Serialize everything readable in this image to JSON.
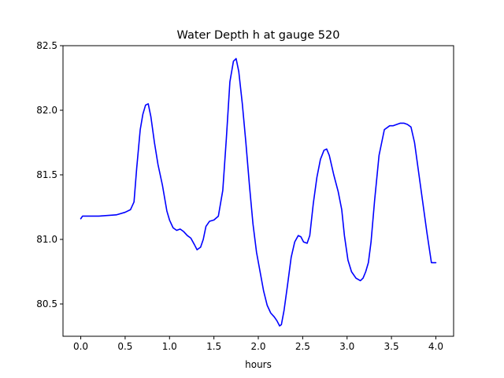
{
  "chart_data": {
    "type": "line",
    "title": "Water Depth h at gauge 520",
    "xlabel": "hours",
    "ylabel": "",
    "xlim": [
      -0.2,
      4.2
    ],
    "ylim": [
      80.25,
      82.5
    ],
    "xticks": [
      0.0,
      0.5,
      1.0,
      1.5,
      2.0,
      2.5,
      3.0,
      3.5,
      4.0
    ],
    "xtick_labels": [
      "0.0",
      "0.5",
      "1.0",
      "1.5",
      "2.0",
      "2.5",
      "3.0",
      "3.5",
      "4.0"
    ],
    "yticks": [
      80.5,
      81.0,
      81.5,
      82.0,
      82.5
    ],
    "ytick_labels": [
      "80.5",
      "81.0",
      "81.5",
      "82.0",
      "82.5"
    ],
    "grid": false,
    "series": [
      {
        "color": "#0000ff",
        "x": [
          0.0,
          0.02,
          0.2,
          0.4,
          0.5,
          0.56,
          0.6,
          0.63,
          0.67,
          0.7,
          0.73,
          0.76,
          0.79,
          0.83,
          0.87,
          0.92,
          0.97,
          1.0,
          1.04,
          1.08,
          1.12,
          1.16,
          1.2,
          1.24,
          1.28,
          1.31,
          1.35,
          1.38,
          1.41,
          1.45,
          1.5,
          1.55,
          1.6,
          1.64,
          1.68,
          1.72,
          1.75,
          1.78,
          1.82,
          1.86,
          1.9,
          1.94,
          1.98,
          2.02,
          2.06,
          2.1,
          2.14,
          2.18,
          2.21,
          2.24,
          2.26,
          2.29,
          2.33,
          2.37,
          2.41,
          2.45,
          2.48,
          2.51,
          2.55,
          2.58,
          2.62,
          2.66,
          2.7,
          2.74,
          2.77,
          2.8,
          2.85,
          2.9,
          2.94,
          2.97,
          3.01,
          3.05,
          3.1,
          3.15,
          3.18,
          3.21,
          3.24,
          3.27,
          3.31,
          3.36,
          3.42,
          3.48,
          3.52,
          3.56,
          3.6,
          3.64,
          3.68,
          3.72,
          3.76,
          3.8,
          3.85,
          3.9,
          3.95,
          4.0
        ],
        "y": [
          81.16,
          81.18,
          81.18,
          81.19,
          81.21,
          81.23,
          81.29,
          81.55,
          81.85,
          81.97,
          82.04,
          82.05,
          81.95,
          81.75,
          81.58,
          81.42,
          81.22,
          81.15,
          81.09,
          81.07,
          81.08,
          81.06,
          81.03,
          81.01,
          80.96,
          80.92,
          80.94,
          81.0,
          81.1,
          81.14,
          81.15,
          81.18,
          81.38,
          81.78,
          82.22,
          82.38,
          82.4,
          82.3,
          82.05,
          81.75,
          81.42,
          81.12,
          80.9,
          80.75,
          80.6,
          80.49,
          80.43,
          80.4,
          80.37,
          80.33,
          80.34,
          80.45,
          80.65,
          80.86,
          80.98,
          81.03,
          81.02,
          80.98,
          80.97,
          81.03,
          81.28,
          81.48,
          81.62,
          81.69,
          81.7,
          81.65,
          81.5,
          81.37,
          81.23,
          81.03,
          80.84,
          80.75,
          80.7,
          80.68,
          80.7,
          80.75,
          80.82,
          80.98,
          81.3,
          81.65,
          81.85,
          81.88,
          81.88,
          81.89,
          81.9,
          81.9,
          81.89,
          81.87,
          81.75,
          81.55,
          81.3,
          81.05,
          80.82,
          80.82
        ]
      }
    ]
  }
}
